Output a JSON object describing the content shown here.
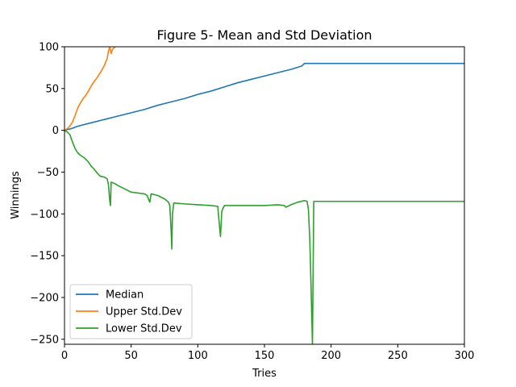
{
  "chart_data": {
    "type": "line",
    "title": "Figure 5- Mean and Std Deviation",
    "xlabel": "Tries",
    "ylabel": "Winnings",
    "xlim": [
      0,
      300
    ],
    "ylim": [
      -256,
      100
    ],
    "xticks": [
      0,
      50,
      100,
      150,
      200,
      250,
      300
    ],
    "xtick_labels": [
      "0",
      "50",
      "100",
      "150",
      "200",
      "250",
      "300"
    ],
    "yticks": [
      100,
      50,
      0,
      -50,
      -100,
      -150,
      -200,
      -250
    ],
    "ytick_labels": [
      "100",
      "50",
      "0",
      "−50",
      "−100",
      "−150",
      "−200",
      "−250"
    ],
    "grid": false,
    "legend_position": "lower-left",
    "series": [
      {
        "name": "Median",
        "color": "#1f77b4",
        "points": [
          [
            0,
            0
          ],
          [
            5,
            2
          ],
          [
            10,
            5
          ],
          [
            20,
            9
          ],
          [
            30,
            13
          ],
          [
            40,
            17
          ],
          [
            50,
            21
          ],
          [
            60,
            25
          ],
          [
            70,
            30
          ],
          [
            80,
            34
          ],
          [
            90,
            38
          ],
          [
            100,
            43
          ],
          [
            110,
            47
          ],
          [
            120,
            52
          ],
          [
            130,
            57
          ],
          [
            140,
            61
          ],
          [
            150,
            65
          ],
          [
            160,
            69
          ],
          [
            170,
            73
          ],
          [
            178,
            77
          ],
          [
            180,
            80
          ],
          [
            190,
            80
          ],
          [
            200,
            80
          ],
          [
            250,
            80
          ],
          [
            300,
            80
          ]
        ]
      },
      {
        "name": "Upper Std.Dev",
        "color": "#ff7f0e",
        "points": [
          [
            0,
            0
          ],
          [
            2,
            2
          ],
          [
            4,
            5
          ],
          [
            6,
            10
          ],
          [
            8,
            18
          ],
          [
            10,
            27
          ],
          [
            12,
            33
          ],
          [
            14,
            38
          ],
          [
            16,
            42
          ],
          [
            18,
            47
          ],
          [
            20,
            53
          ],
          [
            22,
            58
          ],
          [
            24,
            62
          ],
          [
            26,
            67
          ],
          [
            28,
            72
          ],
          [
            30,
            78
          ],
          [
            32,
            86
          ],
          [
            33,
            95
          ],
          [
            34,
            100
          ],
          [
            35,
            92
          ],
          [
            36,
            97
          ],
          [
            38,
            100
          ]
        ]
      },
      {
        "name": "Lower Std.Dev",
        "color": "#2ca02c",
        "points": [
          [
            0,
            0
          ],
          [
            2,
            -2
          ],
          [
            4,
            -5
          ],
          [
            6,
            -14
          ],
          [
            8,
            -22
          ],
          [
            10,
            -27
          ],
          [
            12,
            -30
          ],
          [
            15,
            -33
          ],
          [
            18,
            -38
          ],
          [
            20,
            -43
          ],
          [
            22,
            -46
          ],
          [
            25,
            -52
          ],
          [
            27,
            -55
          ],
          [
            30,
            -56
          ],
          [
            32,
            -58
          ],
          [
            33,
            -65
          ],
          [
            34,
            -85
          ],
          [
            34.5,
            -90
          ],
          [
            35,
            -62
          ],
          [
            38,
            -64
          ],
          [
            40,
            -66
          ],
          [
            45,
            -70
          ],
          [
            50,
            -74
          ],
          [
            55,
            -75
          ],
          [
            60,
            -76
          ],
          [
            62,
            -78
          ],
          [
            63,
            -82
          ],
          [
            64,
            -86
          ],
          [
            65,
            -76
          ],
          [
            70,
            -78
          ],
          [
            75,
            -82
          ],
          [
            78,
            -86
          ],
          [
            79,
            -90
          ],
          [
            80,
            -120
          ],
          [
            80.5,
            -142
          ],
          [
            81,
            -100
          ],
          [
            82,
            -87
          ],
          [
            90,
            -88
          ],
          [
            100,
            -89
          ],
          [
            110,
            -90
          ],
          [
            115,
            -91
          ],
          [
            116,
            -110
          ],
          [
            117,
            -127
          ],
          [
            118,
            -97
          ],
          [
            119,
            -93
          ],
          [
            120,
            -90
          ],
          [
            130,
            -90
          ],
          [
            140,
            -90
          ],
          [
            150,
            -90
          ],
          [
            160,
            -89
          ],
          [
            165,
            -90
          ],
          [
            166,
            -92
          ],
          [
            170,
            -89
          ],
          [
            175,
            -86
          ],
          [
            180,
            -84
          ],
          [
            182,
            -85
          ],
          [
            183,
            -95
          ],
          [
            184,
            -130
          ],
          [
            185,
            -190
          ],
          [
            186,
            -256
          ],
          [
            187,
            -85
          ],
          [
            190,
            -85
          ],
          [
            200,
            -85
          ],
          [
            250,
            -85
          ],
          [
            300,
            -85
          ]
        ]
      }
    ]
  }
}
